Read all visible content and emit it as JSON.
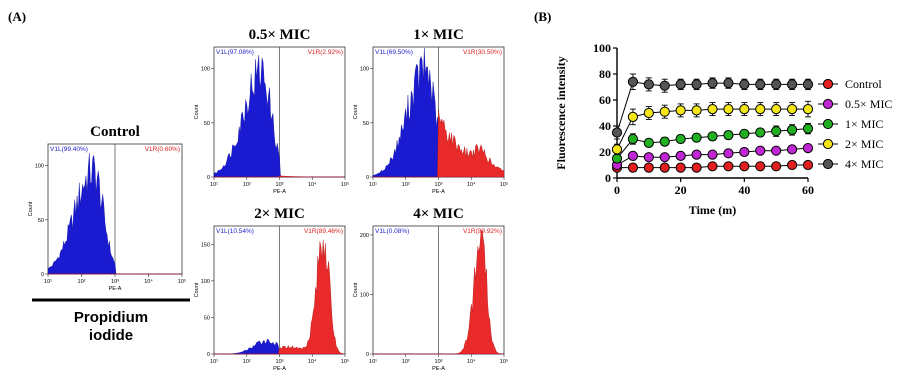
{
  "panel_labels": {
    "a": "(A)",
    "b": "(B)"
  },
  "pi_label": {
    "line1": "Propidium",
    "line2": "iodide"
  },
  "chart_data": [
    {
      "type": "histogram",
      "title": "Control",
      "xlabel": "PE-A",
      "ylabel": "Count",
      "x_scale": "log",
      "x_ticks": [
        "10¹",
        "10²",
        "10³",
        "10⁴",
        "10⁵"
      ],
      "y_ticks": [
        "0",
        "50",
        "100"
      ],
      "ymax": 120,
      "gates": {
        "left": "V1L(99.40%)",
        "right": "V1R(0.60%)"
      },
      "blue_peak_log": 2.35,
      "blue_peak_count": 95,
      "red_fraction": 0.006
    },
    {
      "type": "histogram",
      "title": "0.5× MIC",
      "xlabel": "PE-A",
      "ylabel": "Count",
      "x_scale": "log",
      "x_ticks": [
        "10¹",
        "10²",
        "10³",
        "10⁴",
        "10⁵"
      ],
      "y_ticks": [
        "0",
        "50",
        "100"
      ],
      "ymax": 120,
      "gates": {
        "left": "V1L(97.08%)",
        "right": "V1R(2.92%)"
      },
      "blue_peak_log": 2.45,
      "blue_peak_count": 97,
      "red_fraction": 0.029
    },
    {
      "type": "histogram",
      "title": "1× MIC",
      "xlabel": "PE-A",
      "ylabel": "Count",
      "x_scale": "log",
      "x_ticks": [
        "10¹",
        "10²",
        "10³",
        "10⁴",
        "10⁵"
      ],
      "y_ticks": [
        "0",
        "50",
        "100"
      ],
      "ymax": 120,
      "gates": {
        "left": "V1L(69.50%)",
        "right": "V1R(30.50%)"
      },
      "blue_peak_log": 2.6,
      "blue_peak_count": 100,
      "red_fraction": 0.305
    },
    {
      "type": "histogram",
      "title": "2× MIC",
      "xlabel": "PE-A",
      "ylabel": "Count",
      "x_scale": "log",
      "x_ticks": [
        "10¹",
        "10²",
        "10³",
        "10⁴",
        "10⁵"
      ],
      "y_ticks": [
        "0",
        "50",
        "100",
        "150"
      ],
      "ymax": 175,
      "gates": {
        "left": "V1L(10.54%)",
        "right": "V1R(89.46%)"
      },
      "red_peak_log": 4.35,
      "red_peak_count": 160,
      "blue_fraction": 0.105
    },
    {
      "type": "histogram",
      "title": "4× MIC",
      "xlabel": "PE-A",
      "ylabel": "Count",
      "x_scale": "log",
      "x_ticks": [
        "10¹",
        "10²",
        "10³",
        "10⁴",
        "10⁵"
      ],
      "y_ticks": [
        "0",
        "100",
        "200"
      ],
      "ymax": 215,
      "gates": {
        "left": "V1L(0.08%)",
        "right": "V1R(99.92%)"
      },
      "red_peak_log": 4.3,
      "red_peak_count": 190,
      "blue_fraction": 0.001
    },
    {
      "type": "line",
      "title": "",
      "xlabel": "Time (m)",
      "ylabel": "Fluorescence intensity",
      "xlim": [
        0,
        60
      ],
      "ylim": [
        0,
        100
      ],
      "x_ticks": [
        0,
        20,
        40,
        60
      ],
      "y_ticks": [
        0,
        20,
        40,
        60,
        80,
        100
      ],
      "x": [
        0,
        5,
        10,
        15,
        20,
        25,
        30,
        35,
        40,
        45,
        50,
        55,
        60
      ],
      "series": [
        {
          "name": "Control",
          "color": "#e02020",
          "values": [
            8,
            8,
            8,
            8,
            8,
            8,
            9,
            9,
            9,
            9,
            9,
            10,
            10
          ],
          "err": [
            1,
            1,
            1,
            1,
            1,
            1,
            1,
            1,
            1,
            1,
            1,
            1,
            1
          ]
        },
        {
          "name": "0.5× MIC",
          "color": "#c026d3",
          "values": [
            10,
            17,
            16,
            16,
            17,
            18,
            18,
            19,
            20,
            21,
            21,
            22,
            23
          ],
          "err": [
            2,
            3,
            2,
            2,
            2,
            2,
            2,
            2,
            2,
            2,
            2,
            2,
            2
          ]
        },
        {
          "name": "1× MIC",
          "color": "#22b022",
          "values": [
            15,
            30,
            27,
            28,
            30,
            31,
            32,
            33,
            34,
            35,
            36,
            37,
            38
          ],
          "err": [
            2,
            4,
            3,
            3,
            3,
            3,
            3,
            3,
            3,
            3,
            4,
            4,
            4
          ]
        },
        {
          "name": "2× MIC",
          "color": "#f5e61a",
          "values": [
            22,
            47,
            50,
            51,
            52,
            52,
            53,
            53,
            53,
            53,
            53,
            53,
            53
          ],
          "err": [
            4,
            6,
            5,
            5,
            5,
            5,
            5,
            5,
            5,
            5,
            5,
            5,
            6
          ]
        },
        {
          "name": "4× MIC",
          "color": "#555555",
          "values": [
            35,
            74,
            72,
            71,
            72,
            72,
            73,
            73,
            72,
            72,
            72,
            72,
            72
          ],
          "err": [
            5,
            6,
            5,
            5,
            4,
            4,
            4,
            4,
            4,
            4,
            4,
            4,
            4
          ]
        }
      ],
      "legend_position": "right"
    }
  ]
}
